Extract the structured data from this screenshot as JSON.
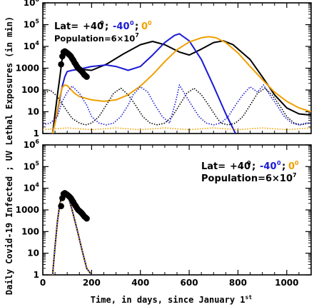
{
  "chart_data": {
    "type": "line",
    "ylabel": "Daily Covid-19 Infected ; UV Lethal Exposures (in min)",
    "xlabel": {
      "main": "Time, in days, since January 1",
      "sup": "st"
    },
    "x_ticks": [
      "0",
      "200",
      "400",
      "600",
      "800",
      "1000"
    ],
    "y_ticks": [
      {
        "base": "1",
        "exp": ""
      },
      {
        "base": "10",
        "exp": ""
      },
      {
        "base": "100",
        "exp": ""
      },
      {
        "base": "1000",
        "exp": ""
      },
      {
        "base": "10",
        "exp": "4"
      },
      {
        "base": "10",
        "exp": "5"
      },
      {
        "base": "10",
        "exp": "6"
      }
    ],
    "xlim": [
      0,
      1100
    ],
    "ylim": [
      1,
      1000000
    ],
    "y_scale": "log",
    "colors": {
      "lat_n40": "#000000",
      "lat_s40": "#1a1ad4",
      "lat_0": "#f0a000"
    },
    "panels": [
      {
        "legend": {
          "lat_prefix": "Lat= ",
          "lat_n40": "+40",
          "sep1": ";",
          "lat_s40": "-40",
          "sep2": ";",
          "lat_0": "0",
          "deg": "0",
          "population": "Population=6×10",
          "population_exp": "7"
        },
        "series": [
          {
            "name": "+40 infected",
            "style": "solid",
            "color": "#000000",
            "x": [
              40,
              50,
              60,
              70,
              80,
              90,
              110,
              130,
              150,
              200,
              260,
              330,
              400,
              450,
              500,
              560,
              600,
              650,
              700,
              740,
              780,
              850,
              900,
              950,
              1000,
              1050,
              1100
            ],
            "y": [
              1,
              8,
              60,
              400,
              3000,
              6000,
              3000,
              1200,
              900,
              800,
              1500,
              4500,
              12000,
              17000,
              12000,
              5500,
              4000,
              7500,
              15000,
              18000,
              12000,
              2500,
              400,
              60,
              15,
              8,
              7
            ]
          },
          {
            "name": "-40 infected",
            "style": "solid",
            "color": "#1a1ad4",
            "x": [
              40,
              50,
              60,
              70,
              80,
              90,
              100,
              120,
              150,
              200,
              260,
              300,
              350,
              400,
              450,
              500,
              540,
              560,
              600,
              650,
              700,
              750,
              790
            ],
            "y": [
              1,
              3,
              10,
              40,
              150,
              400,
              700,
              800,
              900,
              1200,
              1400,
              1200,
              800,
              1200,
              4000,
              15000,
              32000,
              38000,
              18000,
              2500,
              150,
              8,
              1
            ]
          },
          {
            "name": "0 infected",
            "style": "solid",
            "color": "#f0a000",
            "x": [
              40,
              50,
              60,
              70,
              80,
              90,
              100,
              110,
              130,
              150,
              200,
              250,
              300,
              350,
              400,
              450,
              500,
              550,
              600,
              650,
              680,
              710,
              750,
              800,
              850,
              900,
              950,
              1000,
              1050,
              1100
            ],
            "y": [
              1,
              3,
              12,
              50,
              130,
              170,
              160,
              120,
              70,
              50,
              35,
              30,
              35,
              60,
              150,
              500,
              2000,
              7000,
              16000,
              25000,
              28000,
              25000,
              15000,
              5000,
              1200,
              300,
              80,
              30,
              15,
              10
            ]
          },
          {
            "name": "+40 UV",
            "style": "dotted",
            "color": "#000000",
            "x": [
              0,
              30,
              60,
              90,
              120,
              150,
              175,
              200,
              230,
              260,
              290,
              320,
              350,
              380,
              410,
              440,
              470,
              500,
              530,
              560,
              590,
              620,
              650,
              680,
              710,
              730,
              760,
              790,
              820,
              850,
              880,
              910,
              940,
              970,
              1000,
              1030,
              1060,
              1090,
              1100
            ],
            "y": [
              60,
              100,
              50,
              15,
              5,
              3,
              2.5,
              3,
              6,
              20,
              70,
              120,
              60,
              20,
              6,
              3,
              2.5,
              3,
              6,
              20,
              70,
              120,
              60,
              20,
              6,
              3,
              2.5,
              3,
              6,
              20,
              70,
              120,
              60,
              20,
              6,
              3,
              2.5,
              3,
              3
            ]
          },
          {
            "name": "-40 UV",
            "style": "dotted",
            "color": "#1a1ad4",
            "x": [
              0,
              30,
              60,
              80,
              100,
              120,
              150,
              180,
              200,
              230,
              260,
              290,
              320,
              350,
              370,
              400,
              430,
              460,
              490,
              520,
              545,
              560,
              580,
              610,
              640,
              670,
              700,
              730,
              760,
              790,
              820,
              850,
              880,
              905,
              930,
              960,
              990,
              1020,
              1050,
              1080,
              1100
            ],
            "y": [
              2.5,
              3,
              6,
              30,
              80,
              150,
              70,
              20,
              6,
              3,
              2.5,
              3,
              6,
              20,
              60,
              140,
              80,
              20,
              6,
              3,
              30,
              170,
              70,
              20,
              6,
              3,
              2.5,
              3,
              6,
              20,
              60,
              140,
              80,
              170,
              60,
              20,
              6,
              3,
              2.5,
              3,
              3
            ]
          },
          {
            "name": "0 UV",
            "style": "dotted",
            "color": "#f0a000",
            "x": [
              0,
              100,
              200,
              300,
              400,
              500,
              600,
              700,
              800,
              900,
              1000,
              1100
            ],
            "y": [
              1.5,
              1.8,
              1.5,
              1.8,
              1.5,
              1.8,
              1.5,
              1.8,
              1.5,
              1.8,
              1.5,
              1.8
            ]
          },
          {
            "name": "observed",
            "style": "markers",
            "color": "#000000",
            "x": [
              75,
              80,
              85,
              90,
              95,
              100,
              105,
              110,
              115,
              120,
              125,
              130,
              135,
              140,
              145,
              150,
              155,
              160,
              165,
              170,
              175,
              180
            ],
            "y": [
              1500,
              3500,
              5500,
              6000,
              5500,
              5000,
              4500,
              4000,
              3500,
              2800,
              2300,
              1800,
              1500,
              1200,
              1000,
              900,
              800,
              700,
              600,
              500,
              450,
              400
            ]
          }
        ]
      },
      {
        "legend": {
          "lat_prefix": "Lat= ",
          "lat_n40": "+40",
          "sep1": ";",
          "lat_s40": "-40",
          "sep2": ";",
          "lat_0": "0",
          "deg": "0",
          "population": "Population=6×10",
          "population_exp": "7"
        },
        "series": [
          {
            "name": "+40 infected",
            "style": "solid",
            "color": "#000000",
            "x": [
              40,
              50,
              60,
              70,
              80,
              90,
              100,
              110,
              120,
              140,
              160,
              180,
              200
            ],
            "y": [
              1,
              20,
              300,
              2000,
              5000,
              6500,
              5000,
              2500,
              1000,
              130,
              15,
              2,
              1
            ]
          },
          {
            "name": "-40 infected",
            "style": "dashed",
            "color": "#1a1ad4",
            "x": [
              40,
              50,
              60,
              70,
              80,
              90,
              100,
              110,
              120,
              140,
              160,
              180,
              200
            ],
            "y": [
              1,
              20,
              300,
              2000,
              5000,
              6500,
              5000,
              2500,
              1000,
              130,
              15,
              2,
              1
            ]
          },
          {
            "name": "0 infected",
            "style": "dotted",
            "color": "#f0a000",
            "x": [
              40,
              50,
              60,
              70,
              80,
              90,
              100,
              110,
              120,
              140,
              160,
              180,
              200
            ],
            "y": [
              1,
              20,
              300,
              2000,
              5000,
              6500,
              5000,
              2500,
              1000,
              130,
              15,
              2,
              1
            ]
          },
          {
            "name": "observed",
            "style": "markers",
            "color": "#000000",
            "x": [
              75,
              80,
              85,
              90,
              95,
              100,
              105,
              110,
              115,
              120,
              125,
              130,
              135,
              140,
              145,
              150,
              155,
              160,
              165,
              170,
              175,
              180
            ],
            "y": [
              1500,
              3500,
              5500,
              6000,
              5500,
              5000,
              4500,
              4000,
              3500,
              2800,
              2300,
              1800,
              1500,
              1200,
              1000,
              900,
              800,
              700,
              600,
              500,
              450,
              400
            ]
          }
        ]
      }
    ]
  }
}
